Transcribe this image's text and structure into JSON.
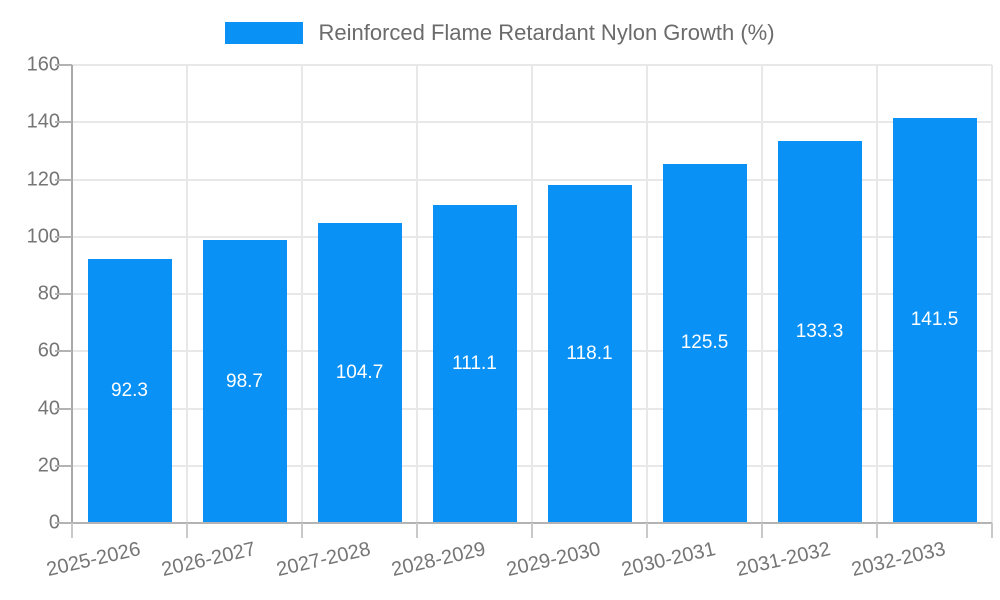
{
  "chart_data": {
    "type": "bar",
    "title": "",
    "legend": {
      "label": "Reinforced Flame Retardant Nylon Growth (%)",
      "position": "top"
    },
    "categories": [
      "2025-2026",
      "2026-2027",
      "2027-2028",
      "2028-2029",
      "2029-2030",
      "2030-2031",
      "2031-2032",
      "2032-2033"
    ],
    "values": [
      92.3,
      98.7,
      104.7,
      111.1,
      118.1,
      125.5,
      133.3,
      141.5
    ],
    "value_labels": [
      "92.3",
      "98.7",
      "104.7",
      "111.1",
      "118.1",
      "125.5",
      "133.3",
      "141.5"
    ],
    "xlabel": "",
    "ylabel": "",
    "ylim": [
      0,
      160
    ],
    "y_ticks": [
      0,
      20,
      40,
      60,
      80,
      100,
      120,
      140,
      160
    ],
    "grid": true,
    "x_label_rotation_deg": -13,
    "colors": {
      "bar": "#0991f5",
      "bar_value_text": "#ffffff",
      "axis_line": "#a8a8a8",
      "grid_line": "#e8e8e8",
      "tick_label": "#757575",
      "legend_text": "#6b6b6b",
      "background": "#ffffff"
    }
  }
}
